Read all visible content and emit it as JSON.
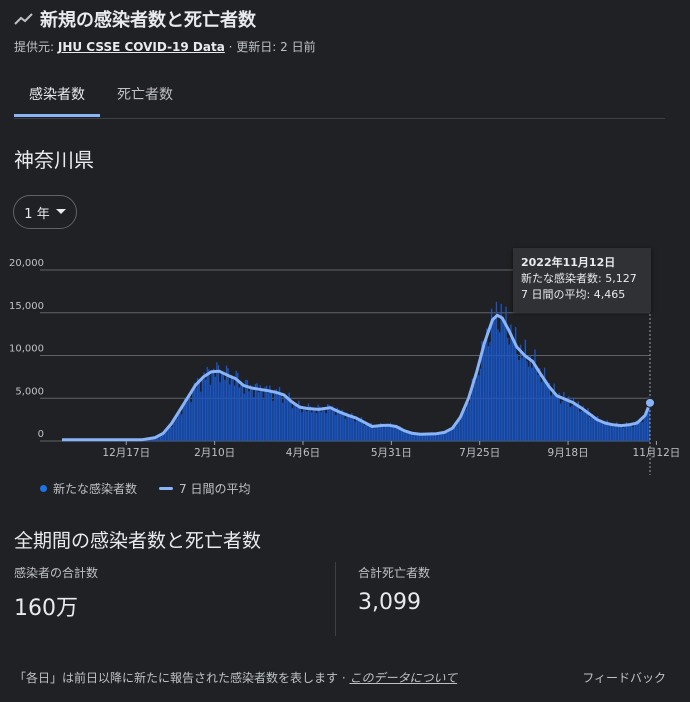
{
  "header": {
    "title": "新規の感染者数と死亡者数",
    "source_prefix": "提供元:",
    "source_link": "JHU CSSE COVID-19 Data",
    "updated": "· 更新日: 2 日前"
  },
  "tabs": [
    {
      "label": "感染者数",
      "active": true
    },
    {
      "label": "死亡者数",
      "active": false
    }
  ],
  "region": "神奈川県",
  "range_button": {
    "label": "1 年",
    "icon": "caret-down-icon"
  },
  "tooltip": {
    "date": "2022年11月12日",
    "new_cases": "新たな感染者数: 5,127",
    "avg": "7 日間の平均: 4,465"
  },
  "legend": {
    "daily": "新たな感染者数",
    "avg": "7 日間の平均"
  },
  "chart_data": {
    "type": "bar",
    "y_ticks": [
      "0",
      "5,000",
      "10,000",
      "15,000",
      "20,000"
    ],
    "ylim": [
      0,
      20000
    ],
    "x_ticks": [
      "12月17日",
      "2月10日",
      "4月6日",
      "5月31日",
      "7月25日",
      "9月18日",
      "11月12日"
    ],
    "x_tick_index": [
      40,
      95,
      150,
      205,
      260,
      315,
      370
    ],
    "n_days": 366,
    "colors": {
      "bars": "#1a56c4",
      "avg_line": "#8ab4f8",
      "grid": "#5f6368"
    },
    "series": [
      {
        "name": "7 日間の平均",
        "points": [
          [
            0,
            150
          ],
          [
            25,
            150
          ],
          [
            50,
            150
          ],
          [
            58,
            400
          ],
          [
            63,
            900
          ],
          [
            68,
            2000
          ],
          [
            73,
            3500
          ],
          [
            78,
            5000
          ],
          [
            83,
            6500
          ],
          [
            88,
            7500
          ],
          [
            93,
            8100
          ],
          [
            98,
            8150
          ],
          [
            103,
            7700
          ],
          [
            108,
            7300
          ],
          [
            113,
            6500
          ],
          [
            118,
            6200
          ],
          [
            123,
            6050
          ],
          [
            128,
            5900
          ],
          [
            133,
            5700
          ],
          [
            138,
            5400
          ],
          [
            143,
            4600
          ],
          [
            148,
            3950
          ],
          [
            153,
            3800
          ],
          [
            160,
            3700
          ],
          [
            167,
            3900
          ],
          [
            172,
            3450
          ],
          [
            178,
            3000
          ],
          [
            183,
            2700
          ],
          [
            188,
            2200
          ],
          [
            193,
            1700
          ],
          [
            198,
            1800
          ],
          [
            203,
            1850
          ],
          [
            208,
            1700
          ],
          [
            213,
            1200
          ],
          [
            218,
            900
          ],
          [
            223,
            800
          ],
          [
            233,
            850
          ],
          [
            238,
            1000
          ],
          [
            243,
            1500
          ],
          [
            248,
            2800
          ],
          [
            253,
            5000
          ],
          [
            258,
            8000
          ],
          [
            263,
            11500
          ],
          [
            268,
            14200
          ],
          [
            271,
            14700
          ],
          [
            274,
            14400
          ],
          [
            278,
            13000
          ],
          [
            283,
            11000
          ],
          [
            288,
            10000
          ],
          [
            293,
            9300
          ],
          [
            298,
            7800
          ],
          [
            303,
            6400
          ],
          [
            308,
            5300
          ],
          [
            313,
            4900
          ],
          [
            318,
            4500
          ],
          [
            323,
            3900
          ],
          [
            328,
            3200
          ],
          [
            333,
            2500
          ],
          [
            338,
            2100
          ],
          [
            343,
            1900
          ],
          [
            348,
            1800
          ],
          [
            353,
            1900
          ],
          [
            358,
            2100
          ],
          [
            363,
            3000
          ],
          [
            366,
            4465
          ]
        ]
      },
      {
        "name": "新たな感染者数",
        "last_value": 5127
      }
    ]
  },
  "totals": {
    "title": "全期間の感染者数と死亡者数",
    "cases_label": "感染者の合計数",
    "cases_value": "160万",
    "deaths_label": "合計死亡者数",
    "deaths_value": "3,099"
  },
  "footer": {
    "note": "「各日」は前日以降に新たに報告された感染者数を表します ·",
    "about_link": "このデータについて",
    "feedback": "フィードバック"
  }
}
